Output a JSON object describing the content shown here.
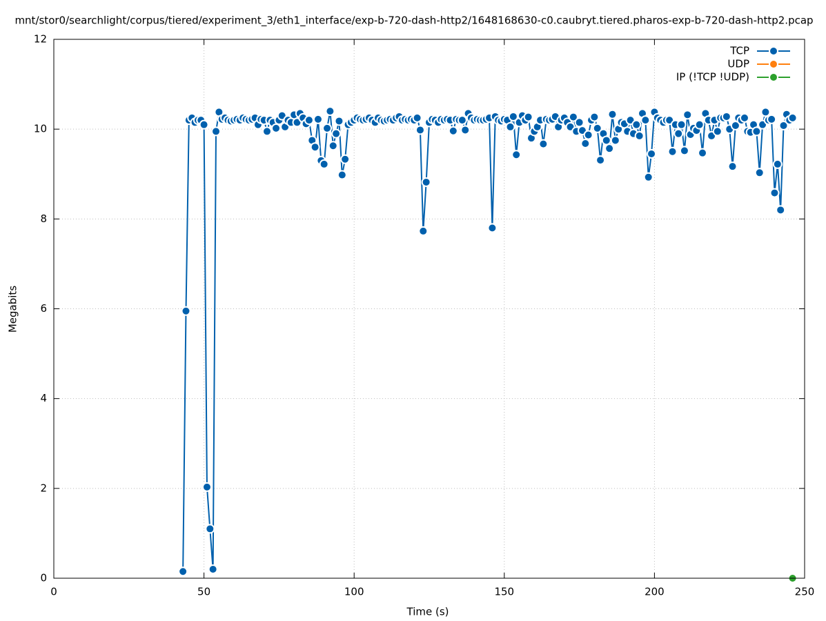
{
  "chart_data": {
    "type": "line",
    "title": "mnt/stor0/searchlight/corpus/tiered/experiment_3/eth1_interface/exp-b-720-dash-http2/1648168630-c0.caubryt.tiered.pharos-exp-b-720-dash-http2.pcap",
    "xlabel": "Time (s)",
    "ylabel": "Megabits",
    "xlim": [
      0,
      250
    ],
    "ylim": [
      0,
      12
    ],
    "xticks": [
      0,
      50,
      100,
      150,
      200,
      250
    ],
    "yticks": [
      0,
      2,
      4,
      6,
      8,
      10,
      12
    ],
    "grid": true,
    "legend": "upper right",
    "series": [
      {
        "name": "TCP",
        "color": "#0060ad",
        "x": [
          43,
          44,
          45,
          46,
          47,
          48,
          49,
          50,
          51,
          52,
          53,
          54,
          55,
          56,
          57,
          58,
          59,
          60,
          61,
          62,
          63,
          64,
          65,
          66,
          67,
          68,
          69,
          70,
          71,
          72,
          73,
          74,
          75,
          76,
          77,
          78,
          79,
          80,
          81,
          82,
          83,
          84,
          85,
          86,
          87,
          88,
          89,
          90,
          91,
          92,
          93,
          94,
          95,
          96,
          97,
          98,
          99,
          100,
          101,
          102,
          103,
          104,
          105,
          106,
          107,
          108,
          109,
          110,
          111,
          112,
          113,
          114,
          115,
          116,
          117,
          118,
          119,
          120,
          121,
          122,
          123,
          124,
          125,
          126,
          127,
          128,
          129,
          130,
          131,
          132,
          133,
          134,
          135,
          136,
          137,
          138,
          139,
          140,
          141,
          142,
          143,
          144,
          145,
          146,
          147,
          148,
          149,
          150,
          151,
          152,
          153,
          154,
          155,
          156,
          157,
          158,
          159,
          160,
          161,
          162,
          163,
          164,
          165,
          166,
          167,
          168,
          169,
          170,
          171,
          172,
          173,
          174,
          175,
          176,
          177,
          178,
          179,
          180,
          181,
          182,
          183,
          184,
          185,
          186,
          187,
          188,
          189,
          190,
          191,
          192,
          193,
          194,
          195,
          196,
          197,
          198,
          199,
          200,
          201,
          202,
          203,
          204,
          205,
          206,
          207,
          208,
          209,
          210,
          211,
          212,
          213,
          214,
          215,
          216,
          217,
          218,
          219,
          220,
          221,
          222,
          223,
          224,
          225,
          226,
          227,
          228,
          229,
          230,
          231,
          232,
          233,
          234,
          235,
          236,
          237,
          238,
          239,
          240,
          241,
          242,
          243,
          244,
          245,
          246
        ],
        "values": [
          0.15,
          5.95,
          10.2,
          10.25,
          10.15,
          10.2,
          10.2,
          10.1,
          2.03,
          1.1,
          0.2,
          9.95,
          10.38,
          10.22,
          10.25,
          10.2,
          10.18,
          10.2,
          10.22,
          10.2,
          10.25,
          10.22,
          10.2,
          10.22,
          10.25,
          10.1,
          10.22,
          10.2,
          9.95,
          10.2,
          10.15,
          10.02,
          10.2,
          10.3,
          10.05,
          10.2,
          10.15,
          10.32,
          10.15,
          10.35,
          10.25,
          10.12,
          10.2,
          9.75,
          9.6,
          10.22,
          9.3,
          9.22,
          10.02,
          10.4,
          9.63,
          9.9,
          10.18,
          8.98,
          9.33,
          10.1,
          10.15,
          10.2,
          10.25,
          10.22,
          10.2,
          10.22,
          10.25,
          10.2,
          10.15,
          10.25,
          10.2,
          10.18,
          10.2,
          10.22,
          10.2,
          10.25,
          10.28,
          10.2,
          10.22,
          10.2,
          10.22,
          10.2,
          10.25,
          9.98,
          7.73,
          8.82,
          10.15,
          10.22,
          10.2,
          10.15,
          10.22,
          10.2,
          10.22,
          10.2,
          9.96,
          10.22,
          10.2,
          10.2,
          9.98,
          10.35,
          10.25,
          10.2,
          10.22,
          10.2,
          10.2,
          10.22,
          10.25,
          7.8,
          10.28,
          10.2,
          10.18,
          10.22,
          10.2,
          10.05,
          10.28,
          9.43,
          10.15,
          10.3,
          10.2,
          10.27,
          9.8,
          9.95,
          10.05,
          10.2,
          9.67,
          10.22,
          10.2,
          10.22,
          10.28,
          10.05,
          10.2,
          10.25,
          10.15,
          10.05,
          10.27,
          9.95,
          10.15,
          9.97,
          9.68,
          9.87,
          10.2,
          10.27,
          10.02,
          9.31,
          9.9,
          9.75,
          9.57,
          10.33,
          9.75,
          10.0,
          10.15,
          10.12,
          9.95,
          10.2,
          9.9,
          10.1,
          9.85,
          10.35,
          10.2,
          8.93,
          9.45,
          10.38,
          10.25,
          10.2,
          10.15,
          10.2,
          10.2,
          9.5,
          10.1,
          9.9,
          10.1,
          9.52,
          10.32,
          9.88,
          10.02,
          9.97,
          10.1,
          9.47,
          10.35,
          10.2,
          9.85,
          10.2,
          9.95,
          10.25,
          10.25,
          10.28,
          10.0,
          9.17,
          10.08,
          10.25,
          10.2,
          10.25,
          9.95,
          9.93,
          10.1,
          9.95,
          9.03,
          10.1,
          10.38,
          10.2,
          10.22,
          8.58,
          9.22,
          8.2,
          10.08,
          10.33,
          10.2,
          10.25
        ]
      },
      {
        "name": "UDP",
        "color": "#ff7f0e",
        "x": [],
        "values": []
      },
      {
        "name": "IP (!TCP  !UDP)",
        "color": "#2ca02c",
        "x": [
          246
        ],
        "values": [
          0
        ]
      }
    ]
  }
}
